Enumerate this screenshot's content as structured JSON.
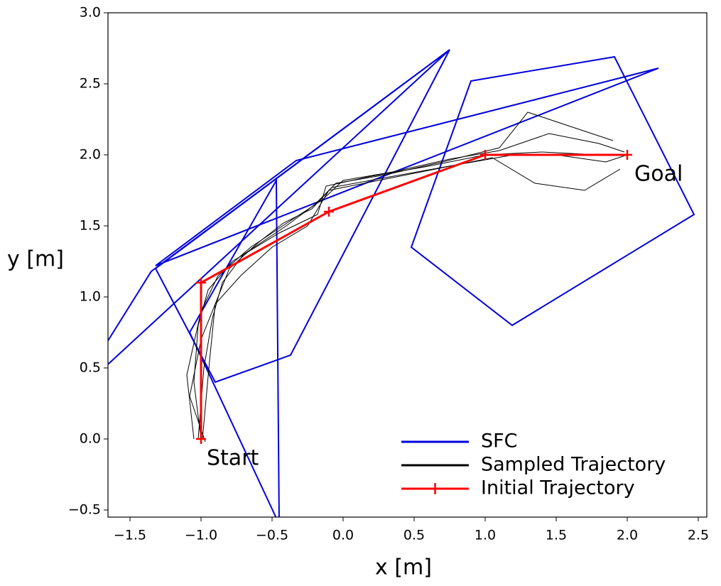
{
  "chart_data": {
    "type": "line",
    "xlabel": "x [m]",
    "ylabel": "y [m]",
    "xlim": [
      -1.655,
      2.56
    ],
    "ylim": [
      -0.55,
      3.0
    ],
    "xticks": [
      {
        "value": -1.5,
        "label": "−1.5"
      },
      {
        "value": -1.0,
        "label": "−1.0"
      },
      {
        "value": -0.5,
        "label": "−0.5"
      },
      {
        "value": 0,
        "label": "0.0"
      },
      0.5,
      {
        "value": 1,
        "label": "1.0"
      },
      1.5,
      {
        "value": 2,
        "label": "2.0"
      },
      2.5
    ],
    "yticks": [
      {
        "value": -0.5,
        "label": "−0.5"
      },
      {
        "value": 0,
        "label": "0.0"
      },
      0.5,
      {
        "value": 1,
        "label": "1.0"
      },
      1.5,
      {
        "value": 2,
        "label": "2.0"
      },
      2.5,
      {
        "value": 3,
        "label": "3.0"
      }
    ],
    "legend": "lower right",
    "annotations": [
      {
        "text": "Start",
        "x": -0.96,
        "y": -0.14
      },
      {
        "text": "Goal",
        "x": 2.05,
        "y": 1.86
      }
    ],
    "series": [
      {
        "name": "SFC",
        "color": "#0000dd",
        "polygons": [
          {
            "x": [
              -1.35,
              0.75,
              -1.9
            ],
            "y": [
              1.18,
              2.74,
              0.3
            ]
          },
          {
            "x": [
              -1.32,
              -0.33,
              2.22
            ],
            "y": [
              1.22,
              1.96,
              2.61
            ]
          },
          {
            "x": [
              0.9,
              1.91,
              2.47,
              1.19,
              0.48
            ],
            "y": [
              2.52,
              2.69,
              1.58,
              0.8,
              1.35
            ]
          },
          {
            "x": [
              -1.32,
              -0.9,
              -0.37,
              0.75
            ],
            "y": [
              1.2,
              0.4,
              0.59,
              2.74
            ]
          },
          {
            "x": [
              -0.47,
              -0.45,
              -1.08
            ],
            "y": [
              1.82,
              -0.6,
              0.75
            ]
          }
        ]
      },
      {
        "name": "Sampled Trajectory",
        "color": "#000000",
        "lines": [
          {
            "x": [
              -1.0,
              -1.05,
              -1.02,
              -0.95,
              -0.78,
              -0.45,
              -0.18,
              -0.12,
              0.2,
              0.6,
              1.0,
              1.4,
              1.8,
              2.0
            ],
            "y": [
              0.0,
              0.4,
              0.8,
              1.05,
              1.25,
              1.45,
              1.58,
              1.78,
              1.85,
              1.92,
              2.0,
              2.02,
              2.0,
              2.0
            ]
          },
          {
            "x": [
              -1.02,
              -0.98,
              -0.92,
              -0.85,
              -0.7,
              -0.4,
              -0.2,
              -0.05,
              0.3,
              0.7,
              1.1,
              1.3,
              1.6,
              1.9
            ],
            "y": [
              0.0,
              0.5,
              0.85,
              1.1,
              1.3,
              1.5,
              1.65,
              1.8,
              1.86,
              1.95,
              2.05,
              2.3,
              2.2,
              2.1
            ]
          },
          {
            "x": [
              -0.97,
              -1.08,
              -1.0,
              -0.9,
              -0.72,
              -0.5,
              -0.25,
              -0.1,
              0.25,
              0.65,
              1.05,
              1.35,
              1.7,
              1.95
            ],
            "y": [
              -0.02,
              0.3,
              0.7,
              0.95,
              1.15,
              1.35,
              1.5,
              1.75,
              1.82,
              1.9,
              1.98,
              1.8,
              1.75,
              1.9
            ]
          },
          {
            "x": [
              -1.05,
              -1.1,
              -1.0,
              -0.88,
              -0.65,
              -0.35,
              -0.15,
              0.0,
              0.35,
              0.75,
              1.1,
              1.45,
              1.8,
              1.98
            ],
            "y": [
              0.0,
              0.45,
              0.9,
              1.15,
              1.35,
              1.55,
              1.68,
              1.82,
              1.88,
              1.97,
              2.03,
              2.15,
              2.08,
              2.02
            ]
          },
          {
            "x": [
              -0.99,
              -0.94,
              -0.9,
              -0.8,
              -0.6,
              -0.42,
              -0.22,
              -0.08,
              0.3,
              0.8,
              1.2,
              1.5,
              1.85,
              2.0
            ],
            "y": [
              0.0,
              0.55,
              0.95,
              1.2,
              1.38,
              1.52,
              1.62,
              1.77,
              1.84,
              1.93,
              2.0,
              2.0,
              1.95,
              2.0
            ]
          }
        ]
      },
      {
        "name": "Initial Trajectory",
        "color": "#ff0000",
        "x": [
          -1.0,
          -1.0,
          -0.1,
          1.0,
          2.0
        ],
        "y": [
          0.0,
          1.1,
          1.6,
          2.0,
          2.0
        ]
      }
    ]
  }
}
